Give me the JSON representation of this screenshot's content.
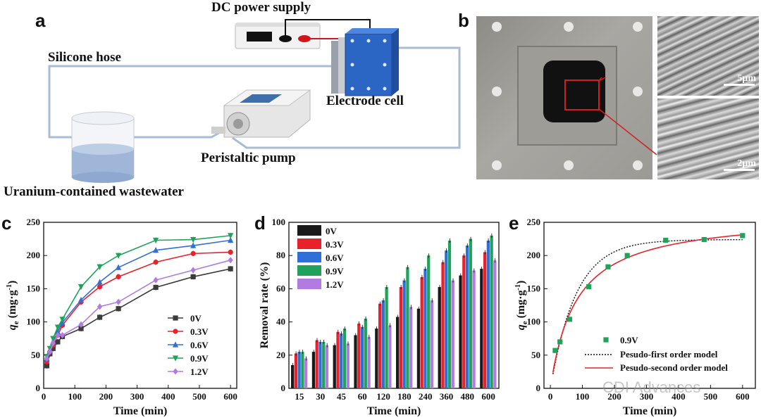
{
  "panels": {
    "a": {
      "letter": "a",
      "labels": {
        "power": "DC power supply",
        "hose": "Silicone hose",
        "electrode": "Electrode cell",
        "pump": "Peristaltic pump",
        "wastewater": "Uranium-contained wastewater"
      }
    },
    "b": {
      "letter": "b",
      "scale_top": "5μm",
      "scale_bottom": "2μm"
    },
    "c": {
      "letter": "c"
    },
    "d": {
      "letter": "d"
    },
    "e": {
      "letter": "e"
    }
  },
  "watermark": "CDI Advances",
  "colors": {
    "s0": "#3b3b3b",
    "s03": "#e8222a",
    "s06": "#2f6fd6",
    "s09": "#1fa35a",
    "s12": "#b27be2",
    "hose": "#a9bcd6",
    "electrode": "#2c66c4",
    "wire_red": "#d3141a"
  },
  "chart_data": [
    {
      "id": "c",
      "type": "line",
      "ylabel_main": "q",
      "ylabel_sub": "e",
      "ylabel_unit": " (mg·g",
      "ylabel_exp": "-1",
      "ylabel_close": ")",
      "xlabel": "Time (min)",
      "xlim": [
        0,
        620
      ],
      "ylim": [
        0,
        250
      ],
      "xticks": [
        0,
        100,
        200,
        300,
        400,
        500,
        600
      ],
      "yticks": [
        0,
        50,
        100,
        150,
        200,
        250
      ],
      "x": [
        10,
        20,
        30,
        45,
        60,
        120,
        180,
        240,
        360,
        480,
        600
      ],
      "series": [
        {
          "name": "0V",
          "color": "#3b3b3b",
          "marker": "square",
          "values": [
            34,
            52,
            60,
            70,
            78,
            90,
            107,
            120,
            152,
            168,
            180
          ]
        },
        {
          "name": "0.3V",
          "color": "#e8222a",
          "marker": "circle",
          "values": [
            40,
            55,
            65,
            80,
            95,
            130,
            153,
            168,
            190,
            203,
            205
          ]
        },
        {
          "name": "0.6V",
          "color": "#2f6fd6",
          "marker": "triangle",
          "values": [
            45,
            58,
            70,
            85,
            99,
            133,
            160,
            182,
            208,
            215,
            223
          ]
        },
        {
          "name": "0.9V",
          "color": "#1fa35a",
          "marker": "tridown",
          "values": [
            48,
            60,
            75,
            92,
            104,
            153,
            183,
            200,
            223,
            224,
            230
          ]
        },
        {
          "name": "1.2V",
          "color": "#b27be2",
          "marker": "diamond",
          "values": [
            45,
            55,
            68,
            80,
            80,
            96,
            123,
            130,
            163,
            178,
            193
          ]
        }
      ]
    },
    {
      "id": "d",
      "type": "bar",
      "ylabel": "Removal rate (%)",
      "xlabel": "Time (min)",
      "ylim": [
        0,
        100
      ],
      "yticks": [
        0,
        20,
        40,
        60,
        80,
        100
      ],
      "categories": [
        "15",
        "30",
        "45",
        "60",
        "120",
        "180",
        "240",
        "360",
        "480",
        "600"
      ],
      "series": [
        {
          "name": "0V",
          "color": "#1a1a1a",
          "values": [
            14,
            22,
            26,
            32,
            36,
            43,
            48,
            61,
            68,
            72
          ]
        },
        {
          "name": "0.3V",
          "color": "#e8222a",
          "values": [
            21,
            29,
            34,
            39,
            51,
            61,
            67,
            76,
            80,
            82
          ]
        },
        {
          "name": "0.6V",
          "color": "#2f6fd6",
          "values": [
            22,
            28,
            33,
            37,
            53,
            65,
            72,
            83,
            86,
            89
          ]
        },
        {
          "name": "0.9V",
          "color": "#1fa35a",
          "values": [
            22,
            28,
            36,
            42,
            61,
            73,
            80,
            89,
            90,
            92
          ]
        },
        {
          "name": "1.2V",
          "color": "#b27be2",
          "values": [
            18,
            26,
            27,
            31,
            38,
            49,
            53,
            65,
            71,
            77
          ]
        }
      ]
    },
    {
      "id": "e",
      "type": "scatter",
      "ylabel_main": "q",
      "ylabel_sub": "e",
      "ylabel_unit": " (mg·g",
      "ylabel_exp": "-1",
      "ylabel_close": ")",
      "xlabel": "Time (min)",
      "xlim": [
        -20,
        640
      ],
      "ylim": [
        0,
        250
      ],
      "xticks": [
        0,
        100,
        200,
        300,
        400,
        500,
        600
      ],
      "yticks": [
        0,
        50,
        100,
        150,
        200,
        250
      ],
      "points": {
        "name": "0.9V",
        "color": "#1fa35a",
        "x": [
          15,
          30,
          60,
          120,
          180,
          240,
          360,
          480,
          600
        ],
        "y": [
          57,
          70,
          104,
          153,
          183,
          200,
          223,
          224,
          230
        ]
      },
      "model1": {
        "name": "Pesudo-first order model",
        "color": "#111111",
        "qe": 224,
        "k": 0.0125
      },
      "model2": {
        "name": "Pesudo-second order model",
        "color": "#e8222a",
        "qe": 262,
        "k": 4.78e-05
      }
    }
  ]
}
